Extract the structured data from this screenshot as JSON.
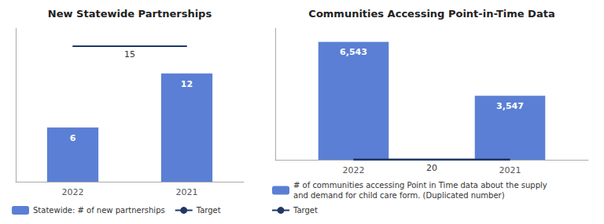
{
  "chart_data": [
    {
      "type": "bar",
      "title": "New Statewide Partnerships",
      "categories": [
        "2022",
        "2021"
      ],
      "series": [
        {
          "name": "Statewide: # of new partnerships",
          "type": "bar",
          "color": "#5B7FD4",
          "values": [
            6,
            12
          ],
          "data_labels": true
        },
        {
          "name": "Target",
          "type": "line",
          "color": "#1F3864",
          "values": [
            15,
            15
          ],
          "data_labels": true
        }
      ],
      "ylim": [
        0,
        17
      ],
      "tick_labels": "x",
      "grid": false,
      "legend": "bottom"
    },
    {
      "type": "bar",
      "title": "Communities Accessing Point-in-Time Data",
      "categories": [
        "2022",
        "2021"
      ],
      "series": [
        {
          "name": "# of communities accessing Point in Time data about the supply\nand demand for child care form. (Duplicated number)",
          "type": "bar",
          "color": "#5B7FD4",
          "values": [
            6543,
            3547
          ],
          "value_labels": [
            "6,543",
            "3,547"
          ],
          "data_labels": true
        },
        {
          "name": "Target",
          "type": "line",
          "color": "#1F3864",
          "values": [
            20,
            20
          ],
          "data_labels": true
        }
      ],
      "ylim": [
        0,
        7300
      ],
      "tick_labels": "x",
      "grid": false,
      "legend": "bottom"
    }
  ]
}
